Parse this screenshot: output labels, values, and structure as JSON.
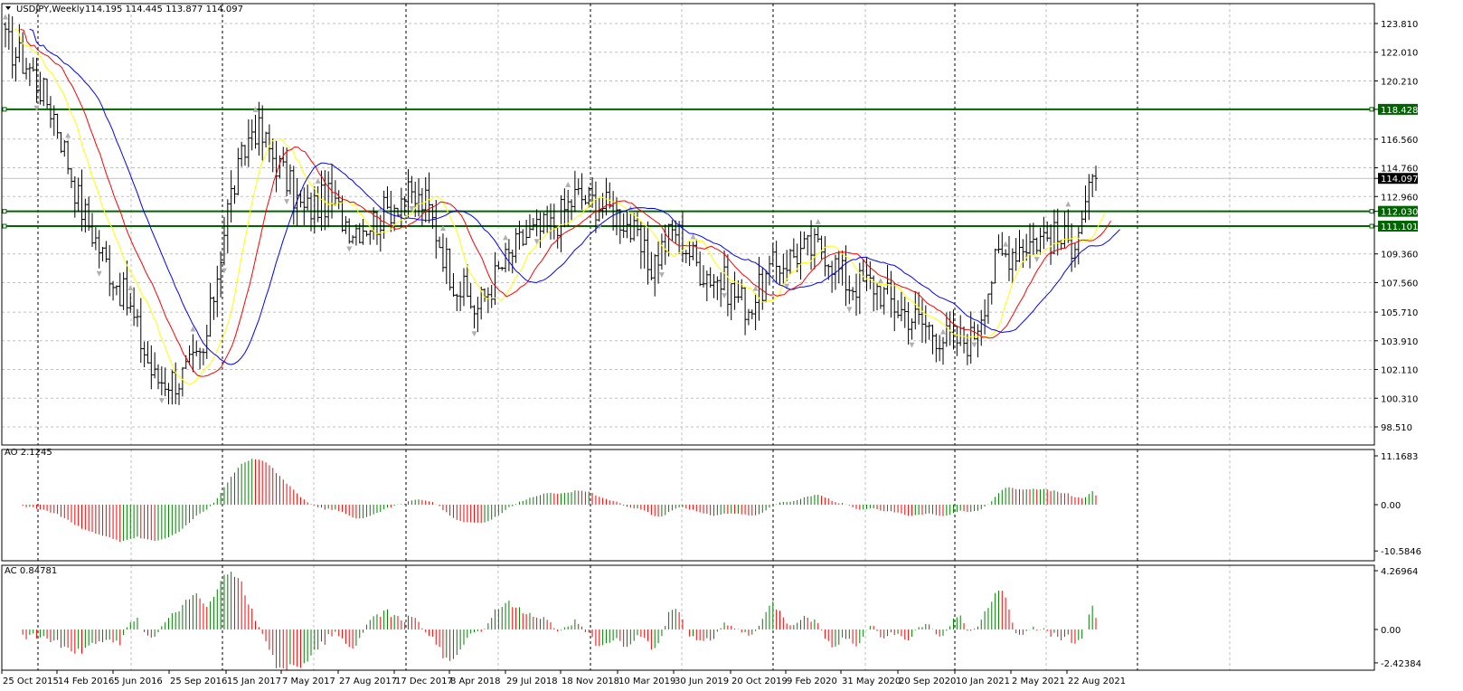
{
  "window": {
    "symbol_title": "USDJPY,Weekly",
    "ohlc": "114.195 114.445 113.877 114.097"
  },
  "colors": {
    "background": "#ffffff",
    "grid": "#c0c0c0",
    "bars": "#000000",
    "level_lines": "#006400",
    "ma_fast": "#ffff00",
    "ma_mid": "#ff0000",
    "ma_slow": "#0000ff",
    "osc_up": "#008000",
    "osc_down": "#ff0000",
    "current_price_label_bg": "#000000"
  },
  "chart_data": [
    {
      "type": "candlestick",
      "panel": "main",
      "title": "USDJPY,Weekly",
      "ylim": [
        98.51,
        124.8
      ],
      "y_ticks": [
        "123.810",
        "122.010",
        "120.210",
        "118.428",
        "116.560",
        "114.760",
        "114.097",
        "112.960",
        "112.030",
        "111.101",
        "109.360",
        "107.560",
        "105.710",
        "103.910",
        "102.110",
        "100.310",
        "98.510"
      ],
      "x_tick_labels": [
        "25 Oct 2015",
        "14 Feb 2016",
        "5 Jun 2016",
        "25 Sep 2016",
        "15 Jan 2017",
        "7 May 2017",
        "27 Aug 2017",
        "17 Dec 2017",
        "8 Apr 2018",
        "29 Jul 2018",
        "18 Nov 2018",
        "10 Mar 2019",
        "30 Jun 2019",
        "20 Oct 2019",
        "9 Feb 2020",
        "31 May 2020",
        "20 Sep 2020",
        "10 Jan 2021",
        "2 May 2021",
        "22 Aug 2021"
      ],
      "horizontal_levels": [
        118.428,
        112.03,
        111.101
      ],
      "current_price": 114.097,
      "close_path": [
        [
          "25 Oct 2015",
          122.6
        ],
        [
          "Dec 2015",
          121.0
        ],
        [
          "Jan 2016",
          118.0
        ],
        [
          "14 Feb 2016",
          112.5
        ],
        [
          "Apr 2016",
          109.0
        ],
        [
          "5 Jun 2016",
          106.0
        ],
        [
          "Jul 2016",
          101.5
        ],
        [
          "Aug 2016",
          101.5
        ],
        [
          "25 Sep 2016",
          103.0
        ],
        [
          "Nov 2016",
          112.5
        ],
        [
          "Dec 2016",
          117.5
        ],
        [
          "15 Jan 2017",
          115.0
        ],
        [
          "Mar 2017",
          112.0
        ],
        [
          "7 May 2017",
          112.8
        ],
        [
          "Jul 2017",
          111.0
        ],
        [
          "27 Aug 2017",
          111.5
        ],
        [
          "Oct 2017",
          113.0
        ],
        [
          "17 Dec 2017",
          112.5
        ],
        [
          "Feb 2018",
          108.0
        ],
        [
          "Mar 2018",
          105.8
        ],
        [
          "8 Apr 2018",
          108.5
        ],
        [
          "May 2018",
          110.5
        ],
        [
          "29 Jul 2018",
          111.0
        ],
        [
          "Sep 2018",
          113.0
        ],
        [
          "Oct 2018",
          112.5
        ],
        [
          "18 Nov 2018",
          111.5
        ],
        [
          "Jan 2019",
          108.5
        ],
        [
          "10 Mar 2019",
          111.0
        ],
        [
          "May 2019",
          108.5
        ],
        [
          "30 Jun 2019",
          107.5
        ],
        [
          "Aug 2019",
          106.0
        ],
        [
          "20 Oct 2019",
          108.5
        ],
        [
          "Dec 2019",
          109.5
        ],
        [
          "9 Feb 2020",
          109.8
        ],
        [
          "Mar 2020",
          107.5
        ],
        [
          "31 May 2020",
          107.5
        ],
        [
          "Jul 2020",
          106.0
        ],
        [
          "20 Sep 2020",
          105.0
        ],
        [
          "Nov 2020",
          104.0
        ],
        [
          "10 Jan 2021",
          104.0
        ],
        [
          "Mar 2021",
          109.0
        ],
        [
          "2 May 2021",
          110.0
        ],
        [
          "Jul 2021",
          110.5
        ],
        [
          "22 Aug 2021",
          110.0
        ],
        [
          "Oct 2021",
          114.097
        ]
      ]
    },
    {
      "type": "bar",
      "panel": "oscillator",
      "title": "AO 2.1245",
      "ylim": [
        -10.5846,
        11.1683
      ],
      "y_ticks": [
        "11.1683",
        "0.00",
        "-10.5846"
      ],
      "last_value": 2.1245
    },
    {
      "type": "bar",
      "panel": "oscillator",
      "title": "AC 0.84781",
      "ylim": [
        -2.42384,
        4.26964
      ],
      "y_ticks": [
        "4.26964",
        "0.00",
        "-2.42384"
      ],
      "last_value": 0.84781
    }
  ]
}
